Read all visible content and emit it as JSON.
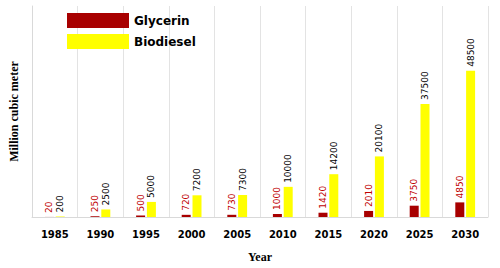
{
  "chart_data": {
    "type": "bar",
    "x_label": "Year",
    "y_label": "Million cubic meter",
    "categories": [
      "1985",
      "1990",
      "1995",
      "2000",
      "2005",
      "2010",
      "2015",
      "2020",
      "2025",
      "2030"
    ],
    "series": [
      {
        "name": "Glycerin",
        "color": "#a80000",
        "values": [
          20,
          250,
          500,
          720,
          730,
          1000,
          1420,
          2010,
          3750,
          4850
        ]
      },
      {
        "name": "Biodiesel",
        "color": "#ffff00",
        "values": [
          200,
          2500,
          5000,
          7200,
          7300,
          10000,
          14200,
          20100,
          37500,
          48500
        ]
      }
    ],
    "ylim": [
      0,
      70000
    ],
    "yticks": [],
    "grid": true,
    "legend": "upper left",
    "data_labels": true,
    "tick_labels": "x"
  }
}
